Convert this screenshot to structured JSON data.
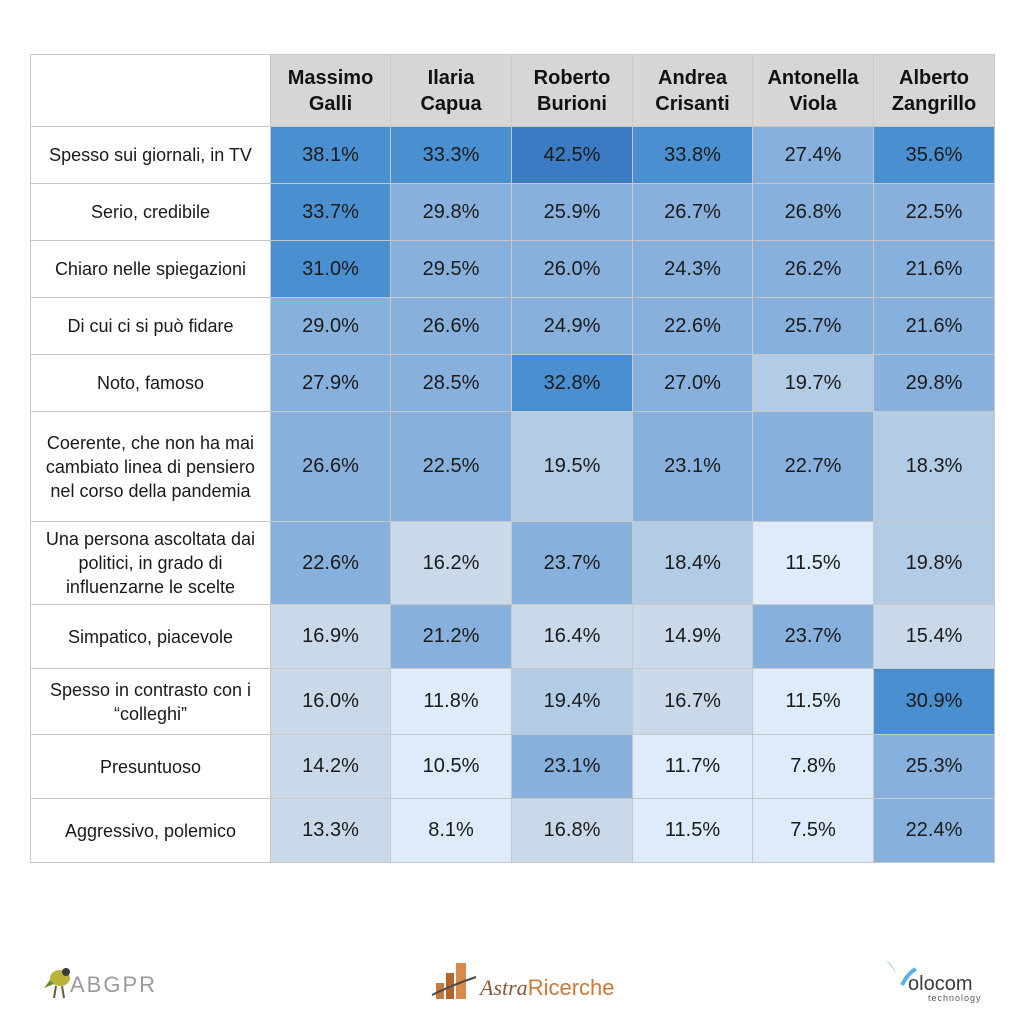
{
  "chart_data": {
    "type": "heatmap",
    "columns": [
      "Massimo\nGalli",
      "Ilaria\nCapua",
      "Roberto\nBurioni",
      "Andrea\nCrisanti",
      "Antonella\nViola",
      "Alberto\nZangrillo"
    ],
    "rows": [
      {
        "label": "Spesso sui giornali, in TV",
        "values": [
          38.1,
          33.3,
          42.5,
          33.8,
          27.4,
          35.6
        ]
      },
      {
        "label": "Serio, credibile",
        "values": [
          33.7,
          29.8,
          25.9,
          26.7,
          26.8,
          22.5
        ]
      },
      {
        "label": "Chiaro nelle spiegazioni",
        "values": [
          31.0,
          29.5,
          26.0,
          24.3,
          26.2,
          21.6
        ]
      },
      {
        "label": "Di cui ci si può fidare",
        "values": [
          29.0,
          26.6,
          24.9,
          22.6,
          25.7,
          21.6
        ]
      },
      {
        "label": "Noto, famoso",
        "values": [
          27.9,
          28.5,
          32.8,
          27.0,
          19.7,
          29.8
        ]
      },
      {
        "label": "Coerente, che non ha mai\ncambiato linea di pensiero\nnel corso della pandemia",
        "values": [
          26.6,
          22.5,
          19.5,
          23.1,
          22.7,
          18.3
        ]
      },
      {
        "label": "Una persona ascoltata dai\npolitici, in grado di\ninfluenzarne le scelte",
        "values": [
          22.6,
          16.2,
          23.7,
          18.4,
          11.5,
          19.8
        ]
      },
      {
        "label": "Simpatico, piacevole",
        "values": [
          16.9,
          21.2,
          16.4,
          14.9,
          23.7,
          15.4
        ]
      },
      {
        "label": "Spesso in contrasto con i\n“colleghi”",
        "values": [
          16.0,
          11.8,
          19.4,
          16.7,
          11.5,
          30.9
        ]
      },
      {
        "label": "Presuntuoso",
        "values": [
          14.2,
          10.5,
          23.1,
          11.7,
          7.8,
          25.3
        ]
      },
      {
        "label": "Aggressivo, polemico",
        "values": [
          13.3,
          8.1,
          16.8,
          11.5,
          7.5,
          22.4
        ]
      }
    ],
    "value_format": "%",
    "colors": {
      "low": "#ddebfa",
      "light": "#cad9ea",
      "mid_light": "#b3cce6",
      "mid": "#88b0dc",
      "mid_dark": "#4a90d0",
      "high": "#3a7bc4",
      "header": "#d6d6d6"
    }
  },
  "logos": {
    "abgpr": "ABGPR",
    "astra": {
      "part1": "Astra",
      "part2": "Ricerche"
    },
    "volocom": {
      "name": "olocom",
      "sub": "technology"
    }
  }
}
